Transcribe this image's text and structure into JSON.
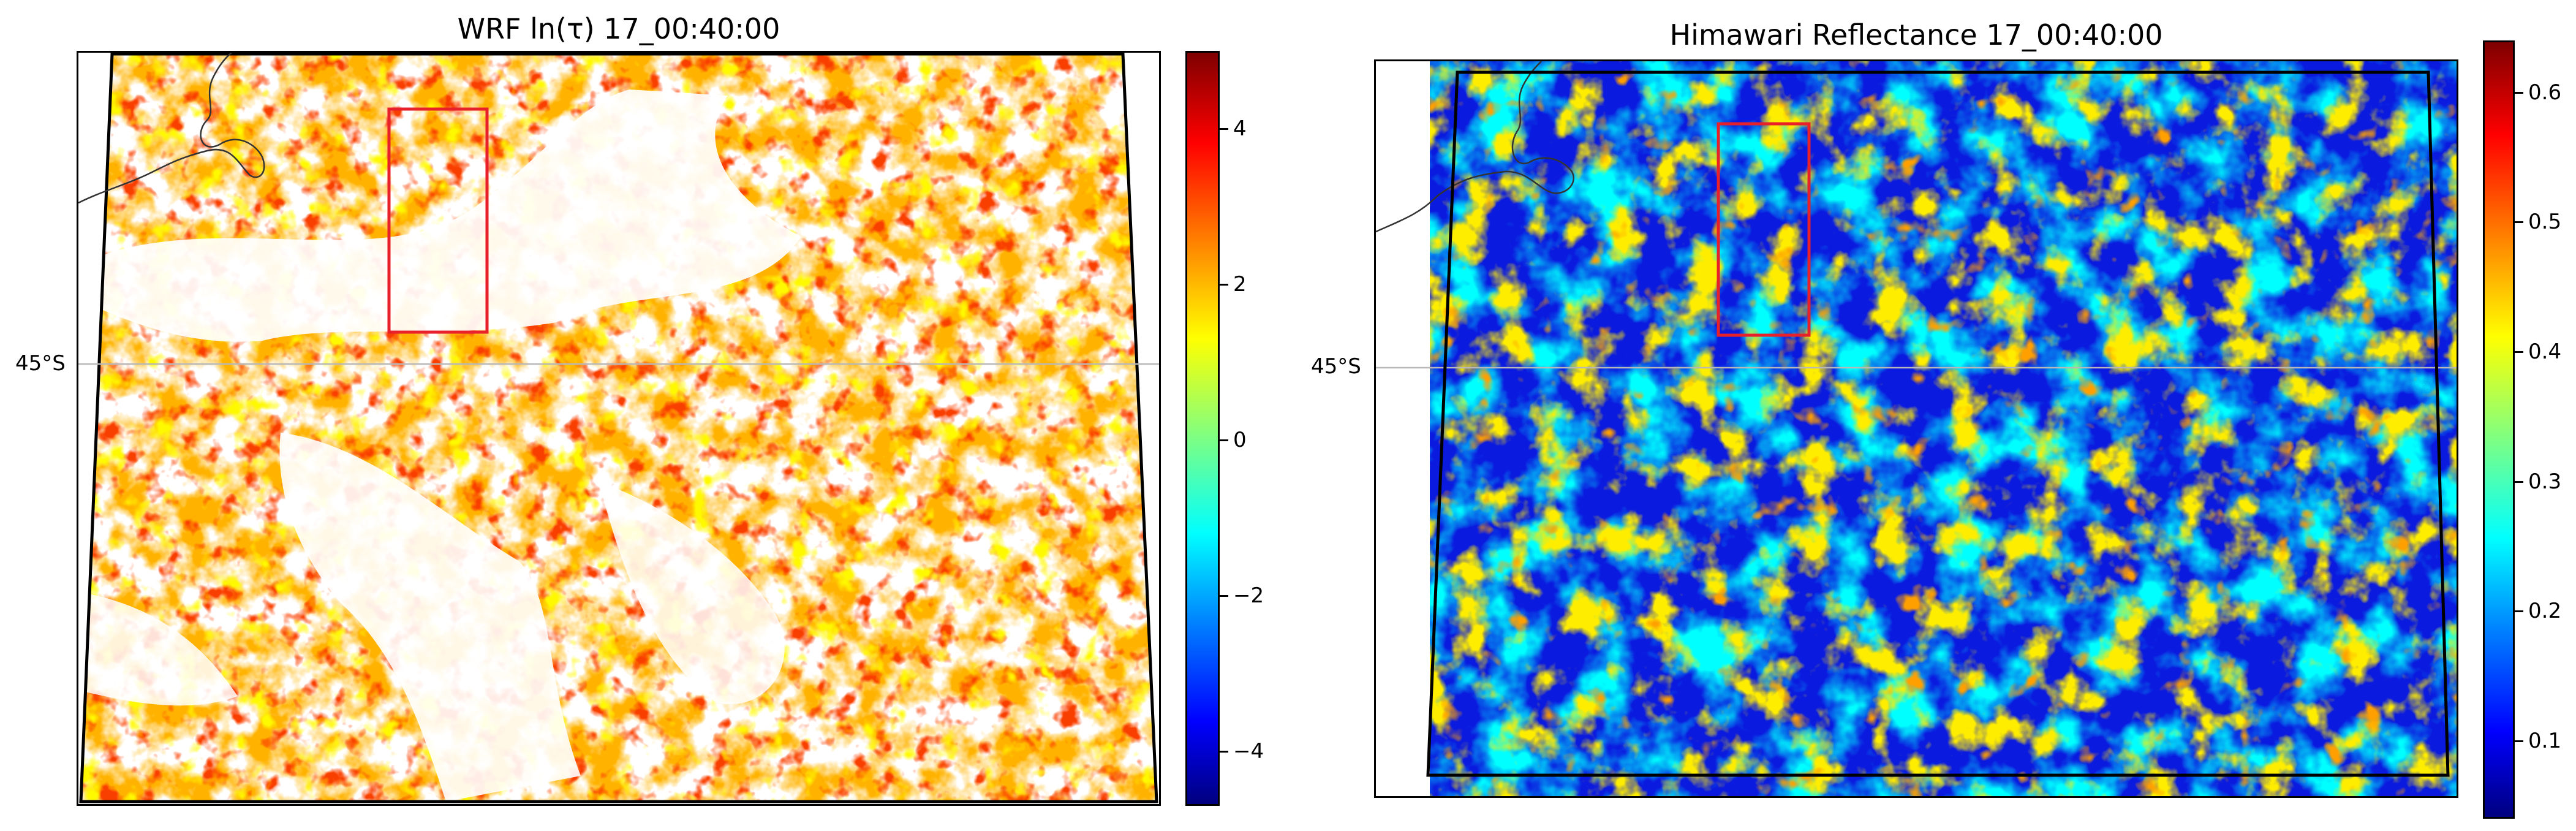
{
  "left_panel": {
    "title": "WRF ln(τ) 17_00:40:00",
    "lat_label": "45°S",
    "colorbar": {
      "ticks": [
        "4",
        "2",
        "0",
        "−2",
        "−4"
      ],
      "tick_values": [
        4,
        2,
        0,
        -2,
        -4
      ],
      "range": [
        -4.7,
        5.0
      ],
      "colormap": "jet"
    }
  },
  "right_panel": {
    "title": "Himawari Reflectance 17_00:40:00",
    "lat_label": "45°S",
    "colorbar": {
      "ticks": [
        "0.6",
        "0.5",
        "0.4",
        "0.3",
        "0.2",
        "0.1"
      ],
      "tick_values": [
        0.6,
        0.5,
        0.4,
        0.3,
        0.2,
        0.1
      ],
      "range": [
        0.04,
        0.64
      ],
      "colormap": "jet"
    }
  },
  "colors": {
    "highlight_box": "#e8202a",
    "jet_stops": [
      "#00007f",
      "#0000ff",
      "#0080ff",
      "#00ffff",
      "#80ff80",
      "#ffff00",
      "#ff8000",
      "#ff0000",
      "#7f0000"
    ]
  }
}
